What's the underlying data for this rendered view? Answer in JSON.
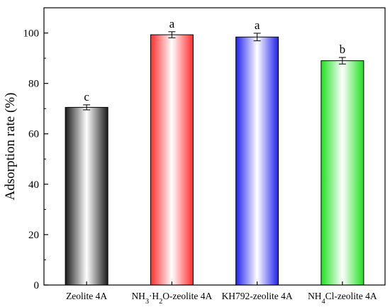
{
  "chart_data": {
    "type": "bar",
    "title": "",
    "xlabel": "",
    "ylabel": "Adsorption rate (%)",
    "ylim": [
      0,
      110
    ],
    "yticks": [
      0,
      20,
      40,
      60,
      80,
      100
    ],
    "categories": [
      "Zeolite 4A",
      "NH3·H2O-zeolite 4A",
      "KH792-zeolite 4A",
      "NH4Cl-zeolite 4A"
    ],
    "values": [
      70.5,
      99.3,
      98.4,
      89.0
    ],
    "errors": [
      1.0,
      1.2,
      1.5,
      1.3
    ],
    "significance_letters": [
      "c",
      "a",
      "a",
      "b"
    ],
    "grid": false,
    "bar_colors": [
      "#1a1a1a",
      "#ff2b2b",
      "#2020ee",
      "#1ee01e"
    ]
  }
}
